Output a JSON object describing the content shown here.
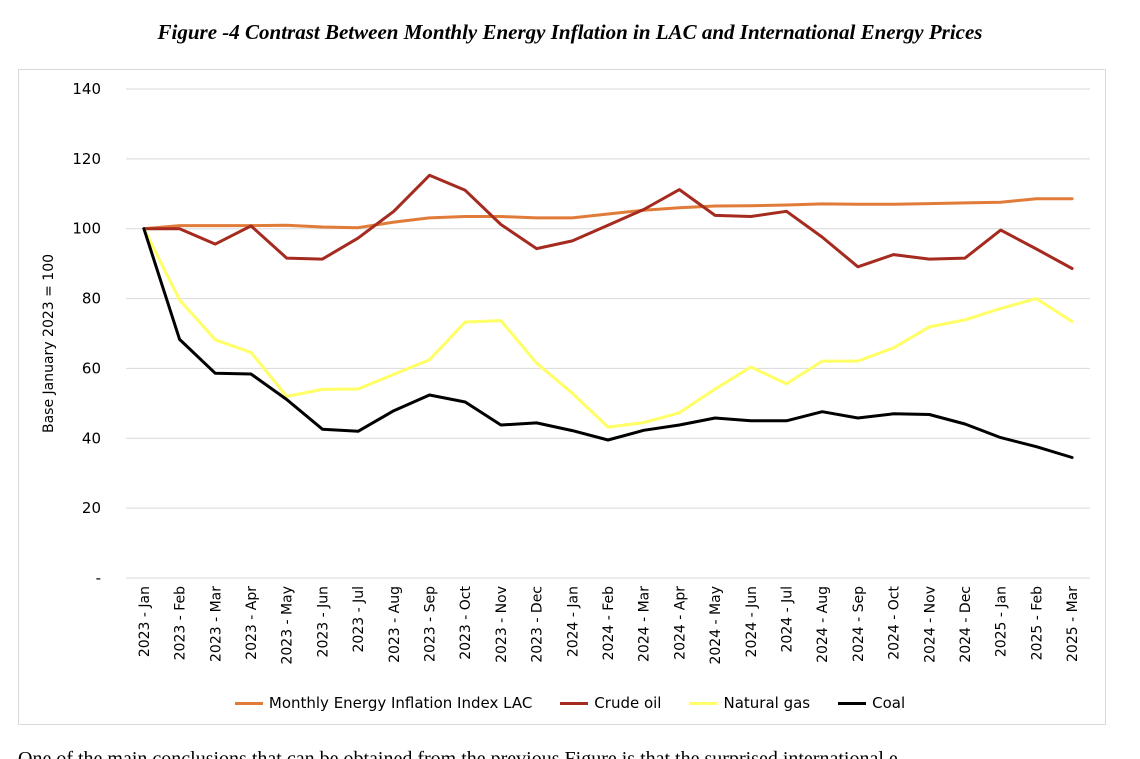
{
  "figure_title": "Figure -4 Contrast Between Monthly Energy Inflation in LAC and International Energy Prices",
  "bottom_text": "One of the main conclusions that can be obtained from the previous Figure is that the surprised international e",
  "chart_data": {
    "type": "line",
    "title": "Figure -4 Contrast Between Monthly Energy Inflation in LAC and International Energy Prices",
    "xlabel": "",
    "ylabel": "Base January 2023 = 100",
    "ylim": [
      0,
      140
    ],
    "yticks": [
      0,
      20,
      40,
      60,
      80,
      100,
      120,
      140
    ],
    "ytick_labels": [
      "-",
      "20",
      "40",
      "60",
      "80",
      "100",
      "120",
      "140"
    ],
    "grid": true,
    "legend_position": "bottom",
    "x": [
      "2023 - Jan",
      "2023 - Feb",
      "2023 - Mar",
      "2023 - Apr",
      "2023 - May",
      "2023 - Jun",
      "2023 - Jul",
      "2023 - Aug",
      "2023 - Sep",
      "2023 - Oct",
      "2023 - Nov",
      "2023 - Dec",
      "2024 - Jan",
      "2024 - Feb",
      "2024 - Mar",
      "2024 - Apr",
      "2024 - May",
      "2024 - Jun",
      "2024 - Jul",
      "2024 - Aug",
      "2024 - Sep",
      "2024 - Oct",
      "2024 - Nov",
      "2024 - Dec",
      "2025 - Jan",
      "2025 - Feb",
      "2025 - Mar"
    ],
    "series": [
      {
        "name": "Monthly Energy Inflation Index LAC",
        "color": "#E07B39",
        "values": [
          100,
          100.9,
          100.9,
          100.9,
          101,
          100.5,
          100.3,
          101.9,
          103.1,
          103.5,
          103.5,
          103.1,
          103.1,
          104.2,
          105.3,
          106,
          106.5,
          106.6,
          106.8,
          107.1,
          107,
          107,
          107.2,
          107.4,
          107.6,
          108.6,
          108.6
        ]
      },
      {
        "name": "Crude oil",
        "color": "#A52A1F",
        "values": [
          100,
          100,
          95.6,
          100.8,
          91.6,
          91.3,
          97.3,
          105,
          115.3,
          111,
          101.2,
          94.3,
          96.5,
          101,
          105.5,
          111.2,
          103.8,
          103.5,
          105,
          97.6,
          89.1,
          92.6,
          91.3,
          91.6,
          99.6,
          94.2,
          88.6
        ]
      },
      {
        "name": "Natural gas",
        "color": "#FFFF66",
        "values": [
          100,
          79.6,
          68.2,
          64.6,
          52,
          54,
          54.1,
          58.3,
          62.5,
          73.3,
          73.7,
          61.5,
          52.9,
          43.2,
          44.5,
          47.3,
          54.1,
          60.4,
          55.6,
          62.1,
          62.1,
          65.9,
          71.9,
          73.9,
          77.2,
          80,
          73.4
        ]
      },
      {
        "name": "Coal",
        "color": "#000000",
        "values": [
          100,
          68.3,
          58.6,
          58.4,
          51.1,
          42.6,
          42,
          47.9,
          52.4,
          50.4,
          43.8,
          44.4,
          42.2,
          39.5,
          42.3,
          43.8,
          45.8,
          45,
          45,
          47.6,
          45.8,
          47,
          46.8,
          44.1,
          40.2,
          37.6,
          34.5
        ]
      }
    ]
  }
}
